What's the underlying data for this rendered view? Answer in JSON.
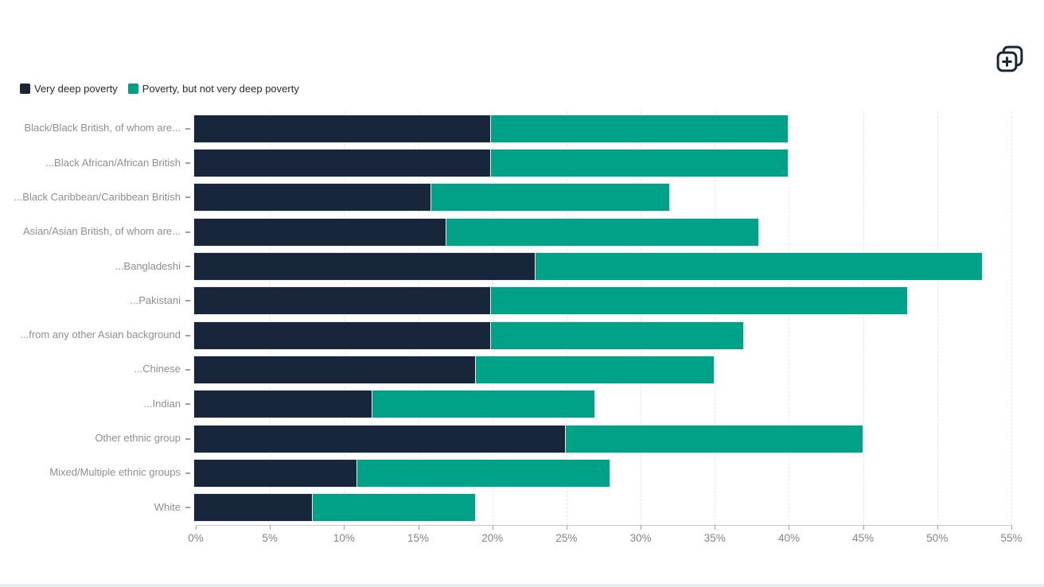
{
  "toolbar": {
    "copy_button_icon": "copy-plus-icon",
    "icon_color": "#18263C"
  },
  "legend": {
    "position": "top-left",
    "items": [
      {
        "label": "Very deep poverty",
        "color": "#18263C"
      },
      {
        "label": "Poverty, but not very deep poverty",
        "color": "#00A287"
      }
    ]
  },
  "chart_data": {
    "type": "bar",
    "orientation": "horizontal",
    "stacked": true,
    "title": "",
    "xlabel": "",
    "ylabel": "",
    "xlim": [
      0,
      55
    ],
    "x_ticks": [
      "0%",
      "5%",
      "10%",
      "15%",
      "20%",
      "25%",
      "30%",
      "35%",
      "40%",
      "45%",
      "50%",
      "55%"
    ],
    "x_tick_values": [
      0,
      5,
      10,
      15,
      20,
      25,
      30,
      35,
      40,
      45,
      50,
      55
    ],
    "grid": "vertical-dashed",
    "legend_position": "top-left",
    "categories": [
      "Black/Black British, of whom are...",
      "...Black African/African British",
      "...Black Caribbean/Caribbean British",
      "Asian/Asian British, of whom are...",
      "...Bangladeshi",
      "...Pakistani",
      "...from any other Asian background",
      "...Chinese",
      "...Indian",
      "Other ethnic group",
      "Mixed/Multiple ethnic groups",
      "White"
    ],
    "series": [
      {
        "name": "Very deep poverty",
        "color": "#18263C",
        "values": [
          20,
          20,
          16,
          17,
          23,
          20,
          20,
          19,
          12,
          25,
          11,
          8
        ]
      },
      {
        "name": "Poverty, but not very deep poverty",
        "color": "#00A287",
        "values": [
          20,
          20,
          16,
          21,
          30,
          28,
          17,
          16,
          15,
          20,
          17,
          11
        ]
      }
    ],
    "totals": [
      40,
      40,
      32,
      38,
      53,
      48,
      37,
      35,
      27,
      45,
      28,
      19
    ]
  },
  "colors": {
    "very_deep_poverty": "#18263C",
    "poverty_not_deep": "#00A287",
    "axis_line": "#C6C9CC",
    "tick_text": "#7F8489",
    "label_text": "#8B8F94",
    "gridline": "#E4E6E8",
    "background": "#FFFFFF"
  }
}
